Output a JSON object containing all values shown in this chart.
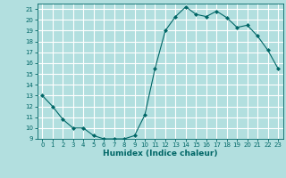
{
  "x": [
    0,
    1,
    2,
    3,
    4,
    5,
    6,
    7,
    8,
    9,
    10,
    11,
    12,
    13,
    14,
    15,
    16,
    17,
    18,
    19,
    20,
    21,
    22,
    23
  ],
  "y": [
    13,
    12,
    10.8,
    10,
    10,
    9.3,
    9,
    9,
    9,
    9.3,
    11.2,
    15.5,
    19,
    20.3,
    21.2,
    20.5,
    20.3,
    20.8,
    20.2,
    19.3,
    19.5,
    18.5,
    17.2,
    15.5
  ],
  "xlabel": "Humidex (Indice chaleur)",
  "xlim": [
    -0.5,
    23.5
  ],
  "ylim": [
    9,
    21.5
  ],
  "yticks": [
    9,
    10,
    11,
    12,
    13,
    14,
    15,
    16,
    17,
    18,
    19,
    20,
    21
  ],
  "xticks": [
    0,
    1,
    2,
    3,
    4,
    5,
    6,
    7,
    8,
    9,
    10,
    11,
    12,
    13,
    14,
    15,
    16,
    17,
    18,
    19,
    20,
    21,
    22,
    23
  ],
  "line_color": "#006666",
  "marker_color": "#006666",
  "bg_color": "#b2dfdf",
  "grid_color": "#ffffff",
  "axes_color": "#006666",
  "tick_fontsize": 5.0,
  "xlabel_fontsize": 6.5
}
